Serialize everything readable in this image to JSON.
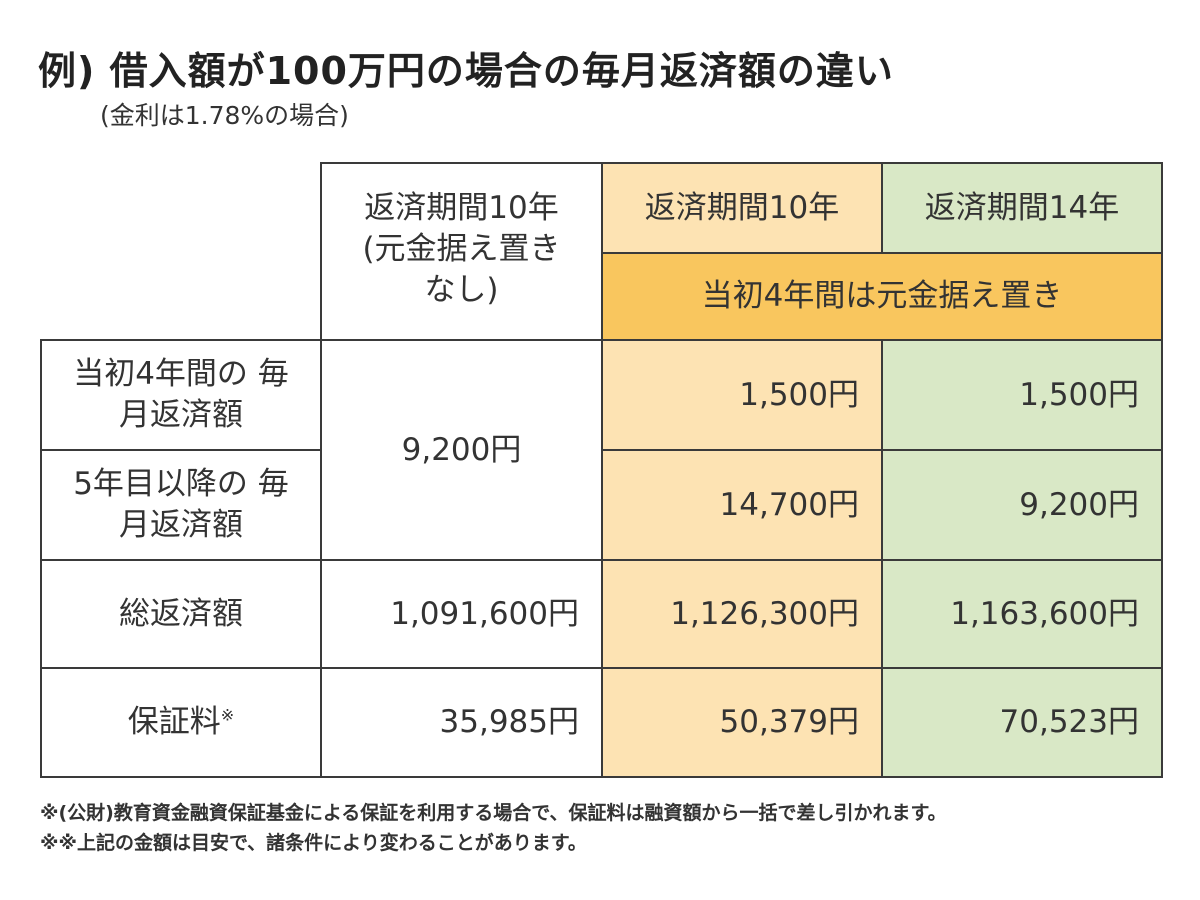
{
  "title": "例) 借入額が100万円の場合の毎月返済額の違い",
  "subtitle": "(金利は1.78%の場合)",
  "table": {
    "headers": {
      "col1": "返済期間10年 (元金据え置き なし)",
      "col2": "返済期間10年",
      "col3": "返済期間14年",
      "merged": "当初4年間は元金据え置き"
    },
    "rows": {
      "first4": {
        "label": "当初4年間の 毎月返済額",
        "col1": "9,200円",
        "col2": "1,500円",
        "col3": "1,500円"
      },
      "after5": {
        "label": "5年目以降の 毎月返済額",
        "col2": "14,700円",
        "col3": "9,200円"
      },
      "total": {
        "label": "総返済額",
        "col1": "1,091,600円",
        "col2": "1,126,300円",
        "col3": "1,163,600円"
      },
      "fee": {
        "label": "保証料",
        "mark": "※",
        "col1": "35,985円",
        "col2": "50,379円",
        "col3": "70,523円"
      }
    }
  },
  "notes": {
    "line1": "※(公財)教育資金融資保証基金による保証を利用する場合で、保証料は融資額から一括で差し引かれます。",
    "line2": "※※上記の金額は目安で、諸条件により変わることがあります。"
  },
  "colors": {
    "orange": "#fde3b3",
    "green": "#d9e8c6",
    "deep_orange": "#f9c65e",
    "border": "#3a3a3a"
  }
}
